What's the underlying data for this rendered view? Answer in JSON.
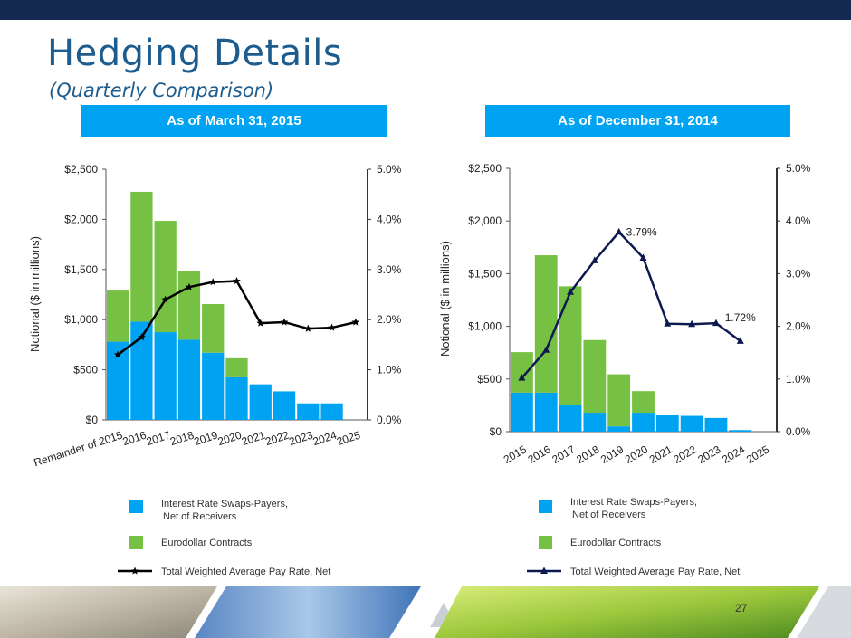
{
  "header": {
    "title": "Hedging Details",
    "subtitle": "(Quarterly Comparison)"
  },
  "panels": {
    "left_label": "As of March 31, 2015",
    "right_label": "As of December 31, 2014"
  },
  "legend": {
    "swaps": "Interest Rate Swaps-Payers,\nNet of Receivers",
    "swaps_line1": "Interest Rate Swaps-Payers,",
    "swaps_line2": "Net of Receivers",
    "eurodollar": "Eurodollar Contracts",
    "rate": "Total Weighted Average Pay Rate, Net"
  },
  "page_number": "27",
  "colors": {
    "swaps": "#00a3f1",
    "eurodollar": "#76c043",
    "line_left": "#000000",
    "line_right": "#0d1a4f",
    "header_bar": "#14294f",
    "title": "#1d5c8e"
  },
  "chart_data": [
    {
      "type": "bar",
      "panel": "As of March 31, 2015",
      "stacked": true,
      "categories": [
        "Remainder of 2015",
        "2016",
        "2017",
        "2018",
        "2019",
        "2020",
        "2021",
        "2022",
        "2023",
        "2024",
        "2025"
      ],
      "series": [
        {
          "name": "Interest Rate Swaps-Payers, Net of Receivers",
          "values": [
            780,
            980,
            875,
            800,
            670,
            425,
            355,
            285,
            165,
            165,
            0
          ]
        },
        {
          "name": "Eurodollar Contracts",
          "values": [
            510,
            1295,
            1110,
            680,
            485,
            190,
            0,
            0,
            0,
            0,
            0
          ]
        }
      ],
      "line": {
        "name": "Total Weighted Average Pay Rate, Net",
        "values": [
          1.3,
          1.65,
          2.4,
          2.65,
          2.75,
          2.77,
          1.93,
          1.95,
          1.82,
          1.84,
          1.95
        ],
        "axis": "right"
      },
      "ylabel": "Notional ($ in millions)",
      "ylim": [
        0,
        2500
      ],
      "yticks": [
        "$0",
        "$500",
        "$1,000",
        "$1,500",
        "$2,000",
        "$2,500"
      ],
      "y2lim": [
        0,
        5
      ],
      "y2ticks": [
        "0.0%",
        "1.0%",
        "2.0%",
        "3.0%",
        "4.0%",
        "5.0%"
      ],
      "annotations": []
    },
    {
      "type": "bar",
      "panel": "As of December 31, 2014",
      "stacked": true,
      "categories": [
        "2015",
        "2016",
        "2017",
        "2018",
        "2019",
        "2020",
        "2021",
        "2022",
        "2023",
        "2024",
        "2025"
      ],
      "series": [
        {
          "name": "Interest Rate Swaps-Payers, Net of Receivers",
          "values": [
            370,
            370,
            255,
            180,
            50,
            180,
            155,
            150,
            130,
            15,
            0
          ]
        },
        {
          "name": "Eurodollar Contracts",
          "values": [
            385,
            1305,
            1125,
            690,
            495,
            205,
            0,
            0,
            0,
            0,
            0
          ]
        }
      ],
      "line": {
        "name": "Total Weighted Average Pay Rate, Net",
        "values": [
          1.02,
          1.55,
          2.65,
          3.25,
          3.79,
          3.3,
          2.05,
          2.04,
          2.06,
          1.72,
          null
        ],
        "axis": "right"
      },
      "ylabel": "Notional ($ in millions)",
      "ylim": [
        0,
        2500
      ],
      "yticks": [
        "$0",
        "$500",
        "$1,000",
        "$1,500",
        "$2,000",
        "$2,500"
      ],
      "y2lim": [
        0,
        5
      ],
      "y2ticks": [
        "0.0%",
        "1.0%",
        "2.0%",
        "3.0%",
        "4.0%",
        "5.0%"
      ],
      "annotations": [
        "3.79%",
        "1.72%"
      ]
    }
  ]
}
